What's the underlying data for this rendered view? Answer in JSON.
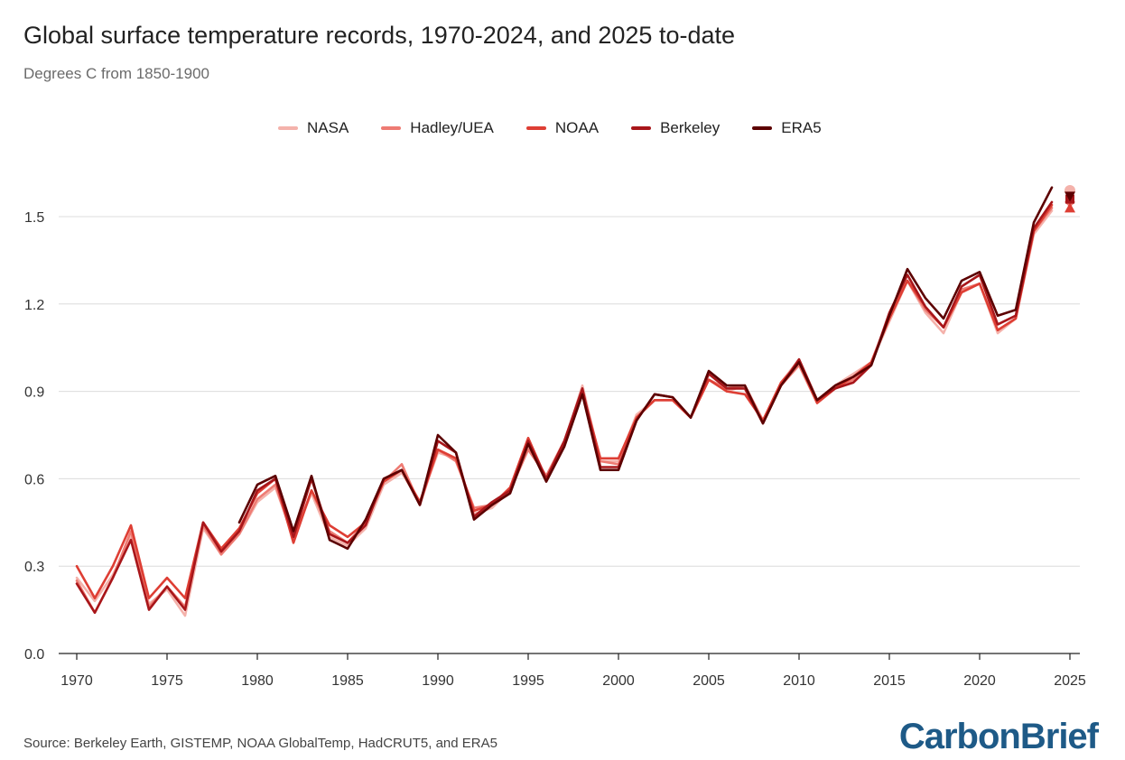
{
  "header": {
    "title": "Global surface temperature records, 1970-2024, and 2025 to-date",
    "subtitle": "Degrees C from 1850-1900"
  },
  "legend": [
    {
      "label": "NASA",
      "color": "#f4b2ab"
    },
    {
      "label": "Hadley/UEA",
      "color": "#ee7b73"
    },
    {
      "label": "NOAA",
      "color": "#de3e34"
    },
    {
      "label": "Berkeley",
      "color": "#a8161a"
    },
    {
      "label": "ERA5",
      "color": "#5c0000"
    }
  ],
  "footer": {
    "source": "Source: Berkeley Earth, GISTEMP, NOAA GlobalTemp, HadCRUT5, and ERA5",
    "logo": "CarbonBrief"
  },
  "chart_data": {
    "type": "line",
    "title": "Global surface temperature records, 1970-2024, and 2025 to-date",
    "subtitle": "Degrees C from 1850-1900",
    "xlim": [
      1970,
      2025
    ],
    "ylim": [
      0,
      1.6
    ],
    "yticks": [
      0.0,
      0.3,
      0.6,
      0.9,
      1.2,
      1.5
    ],
    "ytick_labels": [
      "0.0",
      "0.3",
      "0.6",
      "0.9",
      "1.2",
      "1.5"
    ],
    "xticks": [
      1970,
      1975,
      1980,
      1985,
      1990,
      1995,
      2000,
      2005,
      2010,
      2015,
      2020,
      2025
    ],
    "grid": "horizontal",
    "legend_position": "top",
    "x_start": 1970,
    "series": [
      {
        "name": "NASA",
        "color": "#f4b2ab",
        "start": 1970,
        "values": [
          0.26,
          0.18,
          0.27,
          0.4,
          0.17,
          0.22,
          0.13,
          0.43,
          0.34,
          0.41,
          0.52,
          0.57,
          0.4,
          0.55,
          0.4,
          0.37,
          0.43,
          0.58,
          0.62,
          0.52,
          0.69,
          0.67,
          0.48,
          0.5,
          0.56,
          0.71,
          0.61,
          0.72,
          0.92,
          0.66,
          0.66,
          0.82,
          0.87,
          0.87,
          0.81,
          0.94,
          0.9,
          0.92,
          0.8,
          0.93,
          1.01,
          0.87,
          0.92,
          0.96,
          1.0,
          1.14,
          1.28,
          1.17,
          1.1,
          1.24,
          1.27,
          1.1,
          1.15,
          1.44,
          1.52
        ]
      },
      {
        "name": "Hadley/UEA",
        "color": "#ee7b73",
        "start": 1970,
        "values": [
          0.25,
          0.14,
          0.26,
          0.42,
          0.16,
          0.23,
          0.16,
          0.44,
          0.34,
          0.41,
          0.53,
          0.58,
          0.39,
          0.56,
          0.42,
          0.38,
          0.45,
          0.59,
          0.65,
          0.51,
          0.7,
          0.66,
          0.5,
          0.51,
          0.56,
          0.7,
          0.61,
          0.73,
          0.9,
          0.66,
          0.65,
          0.81,
          0.87,
          0.87,
          0.81,
          0.94,
          0.91,
          0.92,
          0.8,
          0.92,
          0.99,
          0.86,
          0.91,
          0.94,
          1.0,
          1.16,
          1.28,
          1.18,
          1.12,
          1.25,
          1.27,
          1.11,
          1.15,
          1.45,
          1.53
        ]
      },
      {
        "name": "NOAA",
        "color": "#de3e34",
        "start": 1970,
        "values": [
          0.3,
          0.19,
          0.3,
          0.44,
          0.19,
          0.26,
          0.19,
          0.45,
          0.36,
          0.43,
          0.55,
          0.6,
          0.38,
          0.56,
          0.44,
          0.4,
          0.45,
          0.59,
          0.63,
          0.52,
          0.7,
          0.67,
          0.49,
          0.51,
          0.57,
          0.74,
          0.6,
          0.72,
          0.9,
          0.67,
          0.67,
          0.81,
          0.87,
          0.87,
          0.81,
          0.94,
          0.9,
          0.89,
          0.8,
          0.93,
          1.0,
          0.86,
          0.91,
          0.95,
          1.0,
          1.15,
          1.28,
          1.19,
          1.12,
          1.24,
          1.27,
          1.11,
          1.15,
          1.45,
          1.54
        ]
      },
      {
        "name": "Berkeley",
        "color": "#a8161a",
        "start": 1970,
        "values": [
          0.24,
          0.14,
          0.26,
          0.39,
          0.15,
          0.23,
          0.15,
          0.45,
          0.35,
          0.42,
          0.56,
          0.6,
          0.4,
          0.6,
          0.41,
          0.38,
          0.44,
          0.6,
          0.63,
          0.51,
          0.73,
          0.69,
          0.47,
          0.52,
          0.56,
          0.73,
          0.6,
          0.73,
          0.91,
          0.64,
          0.64,
          0.8,
          0.89,
          0.88,
          0.81,
          0.96,
          0.91,
          0.91,
          0.79,
          0.92,
          1.01,
          0.87,
          0.91,
          0.93,
          0.99,
          1.17,
          1.3,
          1.19,
          1.12,
          1.26,
          1.3,
          1.13,
          1.16,
          1.46,
          1.55
        ]
      },
      {
        "name": "ERA5",
        "color": "#5c0000",
        "start": 1979,
        "values": [
          0.45,
          0.58,
          0.61,
          0.42,
          0.61,
          0.39,
          0.36,
          0.46,
          0.6,
          0.63,
          0.51,
          0.75,
          0.69,
          0.46,
          0.51,
          0.55,
          0.72,
          0.59,
          0.71,
          0.89,
          0.63,
          0.63,
          0.8,
          0.89,
          0.88,
          0.81,
          0.97,
          0.92,
          0.92,
          0.79,
          0.92,
          1.0,
          0.87,
          0.92,
          0.95,
          0.99,
          1.16,
          1.32,
          1.22,
          1.15,
          1.28,
          1.31,
          1.16,
          1.18,
          1.48,
          1.6
        ]
      }
    ],
    "points_2025": [
      {
        "name": "NASA",
        "x": 2025,
        "y": 1.59,
        "marker": "circle"
      },
      {
        "name": "Hadley/UEA",
        "x": 2025,
        "y": 1.55,
        "marker": "diamond"
      },
      {
        "name": "NOAA",
        "x": 2025,
        "y": 1.53,
        "marker": "triangle"
      },
      {
        "name": "Berkeley",
        "x": 2025,
        "y": 1.56,
        "marker": "square"
      },
      {
        "name": "ERA5",
        "x": 2025,
        "y": 1.57,
        "marker": "triangle-down"
      }
    ]
  }
}
